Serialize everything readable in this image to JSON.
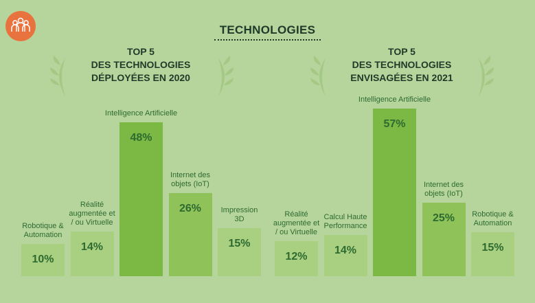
{
  "title": "TECHNOLOGIES",
  "chart_data": [
    {
      "type": "bar",
      "title": [
        "TOP 5",
        "DES TECHNOLOGIES",
        "DÉPLOYÉES EN 2020"
      ],
      "categories": [
        "Robotique & Automation",
        "Réalité augmentée et / ou Virtuelle",
        "Intelligence Artificielle",
        "Internet des objets (IoT)",
        "Impression 3D"
      ],
      "values": [
        10,
        14,
        48,
        26,
        15
      ],
      "value_labels": [
        "10%",
        "14%",
        "48%",
        "26%",
        "15%"
      ],
      "colors": [
        "#a9d080",
        "#a9d080",
        "#7cb844",
        "#8fc35a",
        "#a9d080"
      ]
    },
    {
      "type": "bar",
      "title": [
        "TOP 5",
        "DES TECHNOLOGIES",
        "ENVISAGÉES EN 2021"
      ],
      "categories": [
        "Réalité augmentée et / ou Virtuelle",
        "Calcul Haute Performance",
        "Intelligence Artificielle",
        "Internet des objets (IoT)",
        "Robotique & Automation"
      ],
      "values": [
        12,
        14,
        57,
        25,
        15
      ],
      "value_labels": [
        "12%",
        "14%",
        "57%",
        "25%",
        "15%"
      ],
      "colors": [
        "#a9d080",
        "#a9d080",
        "#7cb844",
        "#8fc35a",
        "#a9d080"
      ]
    }
  ]
}
